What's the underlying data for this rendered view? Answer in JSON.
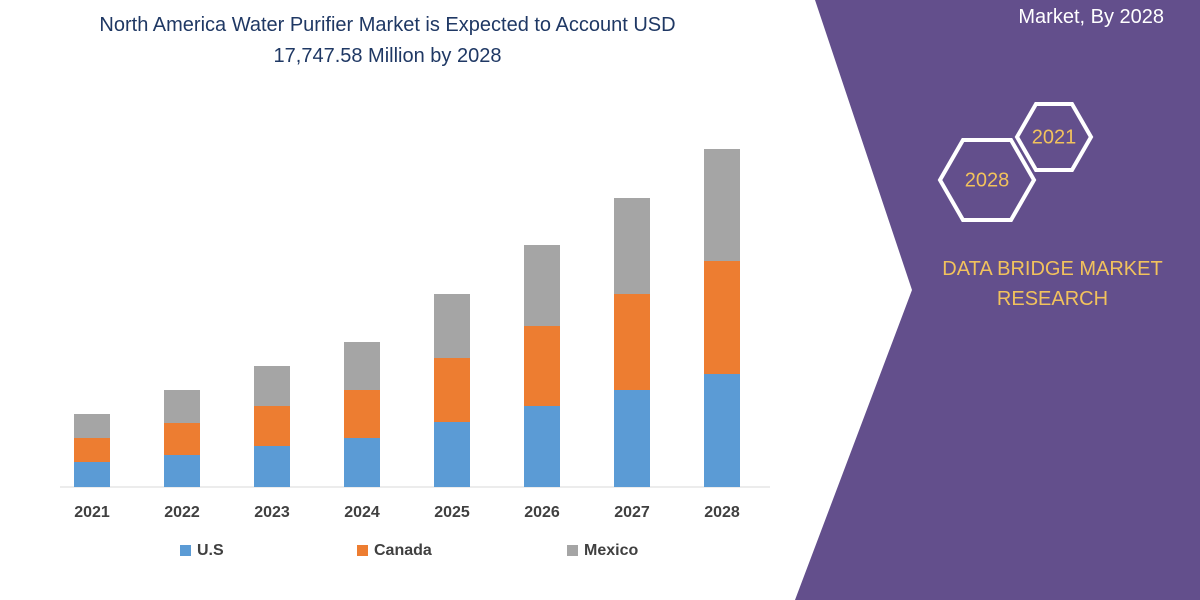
{
  "header_note": "Market, By 2028",
  "badges": [
    "2021",
    "2028"
  ],
  "brand": "DATA BRIDGE MARKET RESEARCH",
  "chart_data": {
    "type": "bar",
    "stacked": true,
    "title": "North America Water Purifier Market is Expected to Account USD 17,747.58 Million by 2028",
    "categories": [
      "2021",
      "2022",
      "2023",
      "2024",
      "2025",
      "2026",
      "2027",
      "2028"
    ],
    "series": [
      {
        "name": "U.S",
        "color": "#5b9bd5",
        "values": [
          25,
          32,
          41,
          49,
          65,
          81,
          97,
          113
        ]
      },
      {
        "name": "Canada",
        "color": "#ed7d31",
        "values": [
          24,
          32,
          40,
          48,
          64,
          80,
          96,
          113
        ]
      },
      {
        "name": "Mexico",
        "color": "#a5a5a5",
        "values": [
          24,
          33,
          40,
          48,
          64,
          81,
          96,
          112
        ]
      }
    ]
  }
}
